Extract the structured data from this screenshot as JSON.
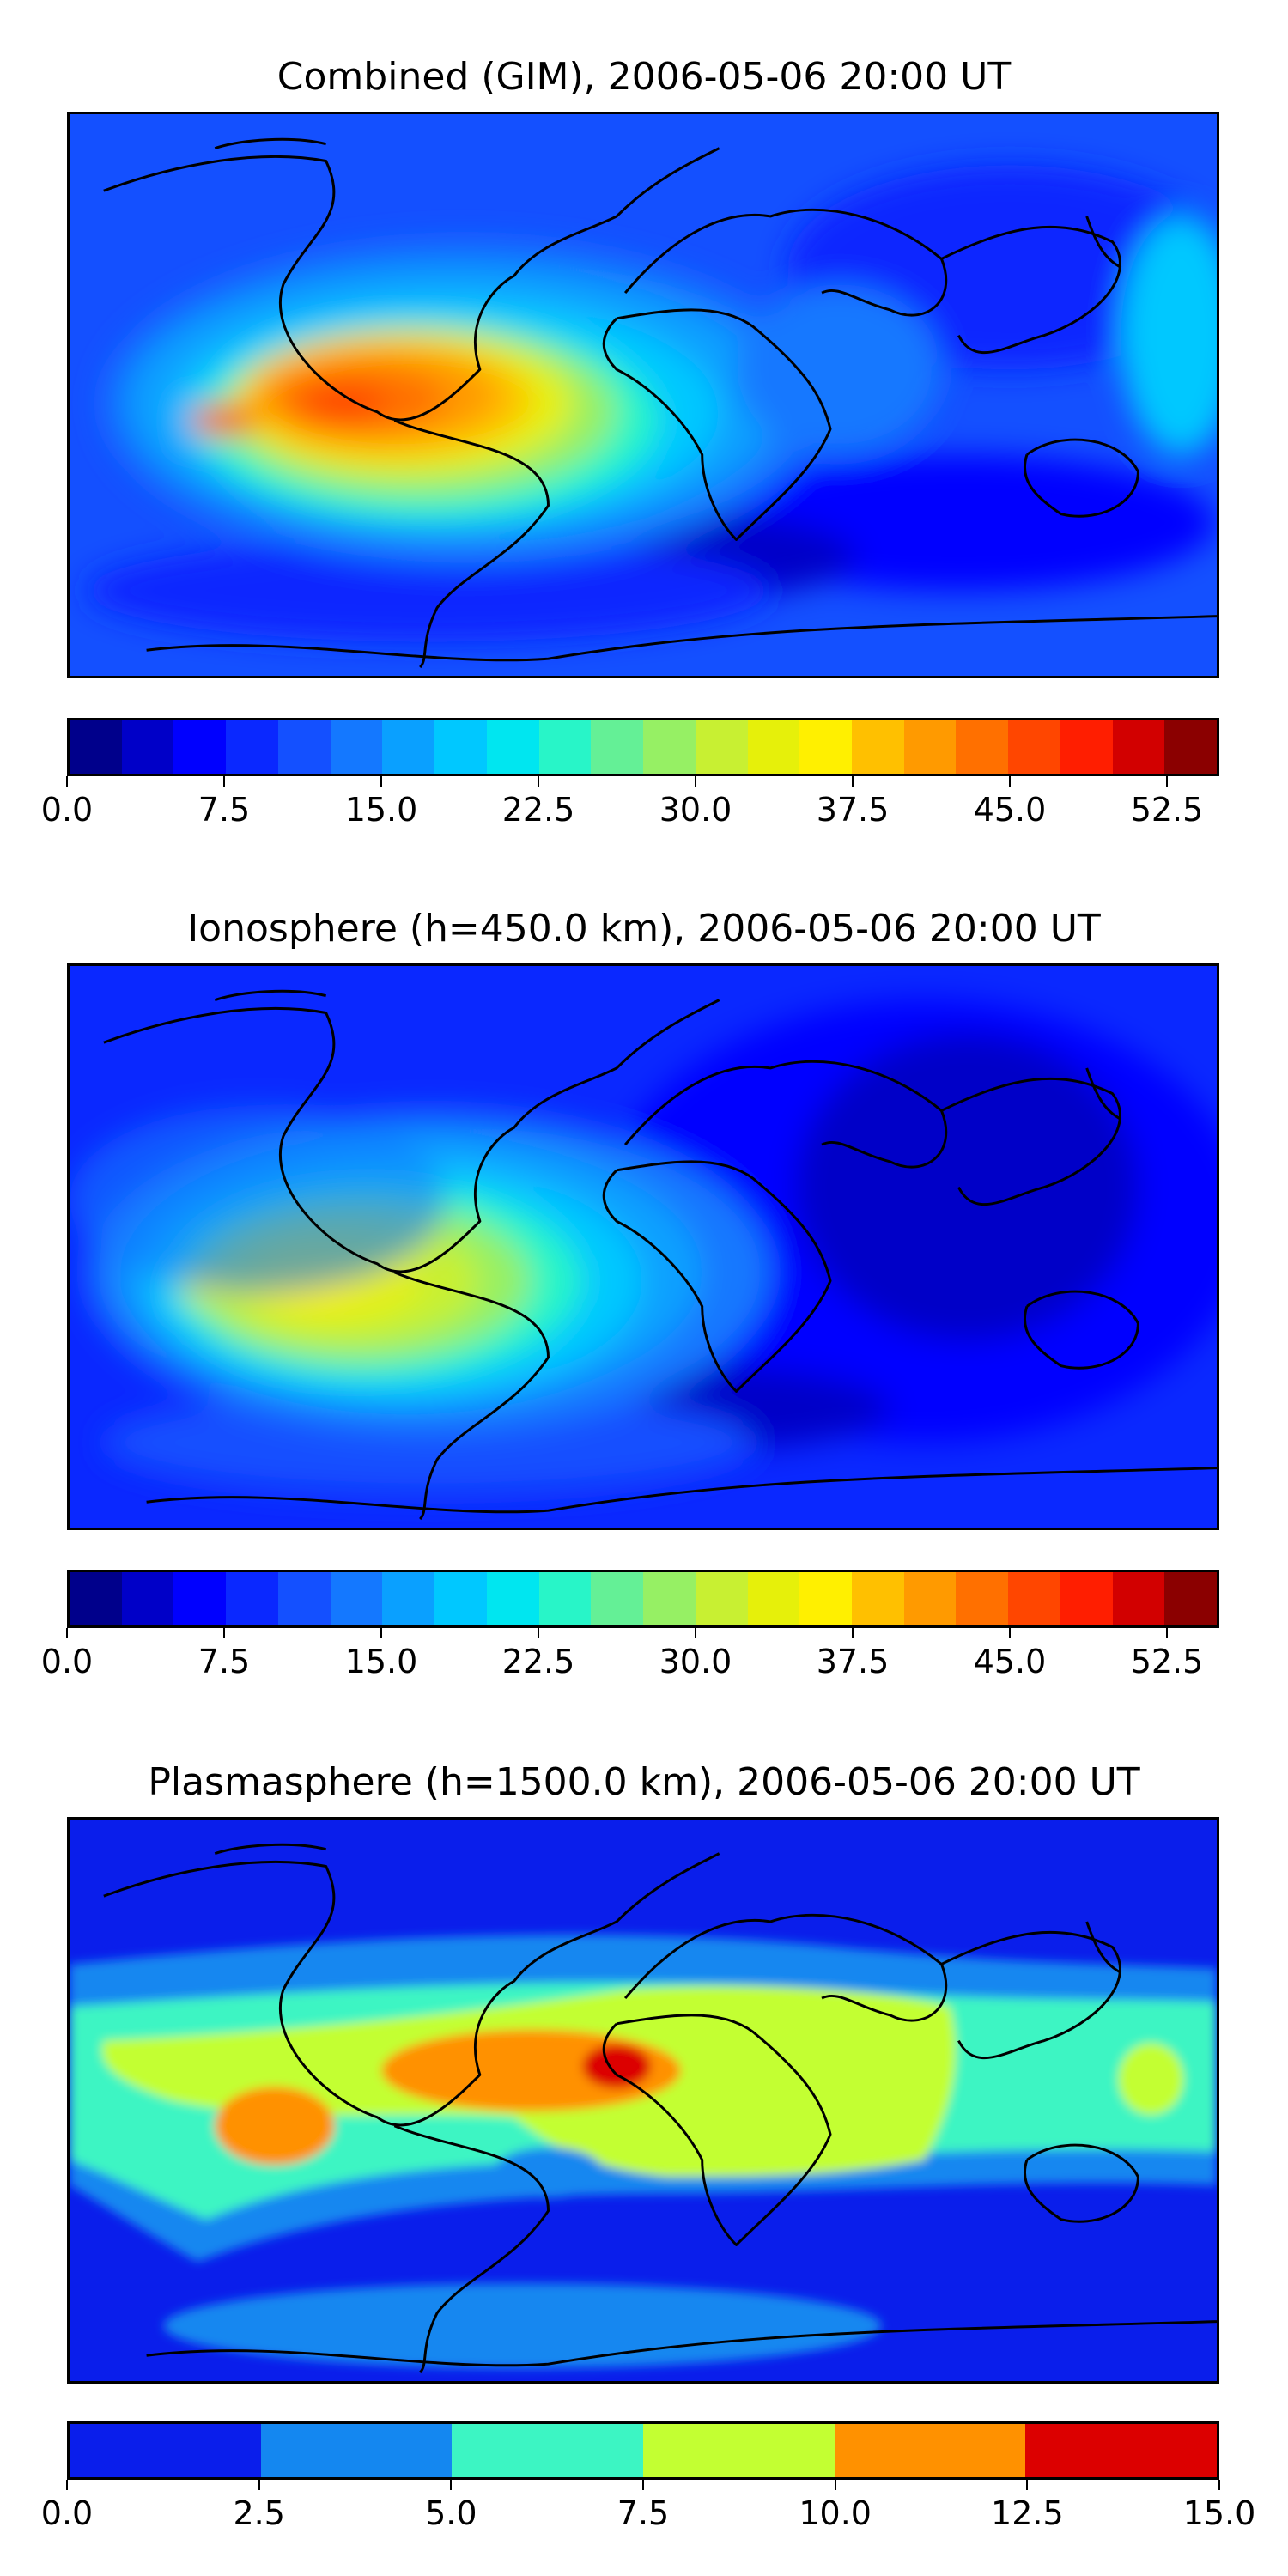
{
  "panels": [
    {
      "title": "Combined (GIM), 2006-05-06 20:00 UT",
      "colorbar": {
        "colors": [
          "#00008b",
          "#0000c8",
          "#0000ff",
          "#0a28ff",
          "#1450ff",
          "#1478ff",
          "#0aa0ff",
          "#00c8ff",
          "#00e6f0",
          "#28f5c8",
          "#64f096",
          "#96f064",
          "#c8f032",
          "#e6f00a",
          "#fff000",
          "#ffc000",
          "#ff9a00",
          "#ff7000",
          "#ff4600",
          "#ff1e00",
          "#d20000",
          "#8b0000"
        ],
        "tick_labels": [
          "0.0",
          "7.5",
          "15.0",
          "22.5",
          "30.0",
          "37.5",
          "45.0",
          "52.5"
        ],
        "tick_values": [
          0,
          7.5,
          15,
          22.5,
          30,
          37.5,
          45,
          52.5
        ],
        "range": [
          0,
          55
        ]
      }
    },
    {
      "title": "Ionosphere  (h=450.0 km), 2006-05-06 20:00 UT",
      "colorbar": {
        "colors": [
          "#00008b",
          "#0000c8",
          "#0000ff",
          "#0a28ff",
          "#1450ff",
          "#1478ff",
          "#0aa0ff",
          "#00c8ff",
          "#00e6f0",
          "#28f5c8",
          "#64f096",
          "#96f064",
          "#c8f032",
          "#e6f00a",
          "#fff000",
          "#ffc000",
          "#ff9a00",
          "#ff7000",
          "#ff4600",
          "#ff1e00",
          "#d20000",
          "#8b0000"
        ],
        "tick_labels": [
          "0.0",
          "7.5",
          "15.0",
          "22.5",
          "30.0",
          "37.5",
          "45.0",
          "52.5"
        ],
        "tick_values": [
          0,
          7.5,
          15,
          22.5,
          30,
          37.5,
          45,
          52.5
        ],
        "range": [
          0,
          55
        ]
      }
    },
    {
      "title": "Plasmasphere (h=1500.0 km), 2006-05-06 20:00 UT",
      "colorbar": {
        "colors": [
          "#0a1eeb",
          "#1487f0",
          "#3cf5c3",
          "#c3ff32",
          "#ff9100",
          "#dc0000"
        ],
        "tick_labels": [
          "0.0",
          "2.5",
          "5.0",
          "7.5",
          "10.0",
          "12.5",
          "15.0"
        ],
        "tick_values": [
          0,
          2.5,
          5,
          7.5,
          10,
          12.5,
          15
        ],
        "range": [
          0,
          15
        ]
      }
    }
  ]
}
